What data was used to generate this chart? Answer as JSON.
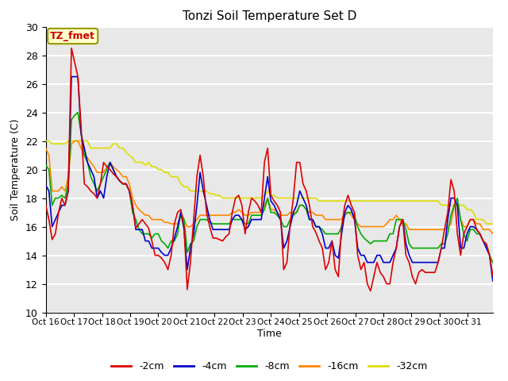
{
  "title": "Tonzi Soil Temperature Set D",
  "xlabel": "Time",
  "ylabel": "Soil Temperature (C)",
  "ylim": [
    10,
    30
  ],
  "yticks": [
    10,
    12,
    14,
    16,
    18,
    20,
    22,
    24,
    26,
    28,
    30
  ],
  "xtick_labels": [
    "Oct 16",
    "Oct 17",
    "Oct 18",
    "Oct 19",
    "Oct 20",
    "Oct 21",
    "Oct 22",
    "Oct 23",
    "Oct 24",
    "Oct 25",
    "Oct 26",
    "Oct 27",
    "Oct 28",
    "Oct 29",
    "Oct 30",
    "Oct 31"
  ],
  "annotation_text": "TZ_fmet",
  "annotation_color": "#cc0000",
  "annotation_bg": "#ffffcc",
  "annotation_border": "#999900",
  "colors": {
    "-2cm": "#dd0000",
    "-4cm": "#0000cc",
    "-8cm": "#00aa00",
    "-16cm": "#ff8800",
    "-32cm": "#dddd00"
  },
  "background_color": "#e8e8e8",
  "grid_color": "#ffffff",
  "series": {
    "-2cm": [
      17.5,
      16.5,
      15.1,
      15.5,
      17.0,
      18.0,
      17.5,
      18.5,
      28.5,
      27.5,
      26.5,
      23.0,
      19.0,
      18.8,
      18.5,
      18.3,
      18.0,
      19.0,
      20.5,
      20.2,
      20.0,
      19.7,
      19.5,
      19.2,
      19.0,
      19.0,
      18.5,
      17.5,
      15.9,
      16.2,
      16.5,
      16.2,
      15.9,
      15.0,
      14.0,
      14.0,
      13.8,
      13.5,
      13.0,
      14.0,
      16.2,
      17.0,
      17.2,
      16.0,
      11.6,
      13.5,
      16.5,
      19.5,
      21.0,
      19.5,
      17.0,
      16.0,
      15.2,
      15.2,
      15.1,
      15.0,
      15.3,
      15.5,
      17.0,
      18.0,
      18.2,
      17.5,
      15.5,
      17.0,
      18.0,
      17.8,
      17.5,
      17.0,
      20.5,
      21.5,
      18.2,
      17.8,
      17.5,
      17.0,
      13.0,
      13.5,
      16.2,
      18.0,
      20.5,
      20.5,
      19.0,
      18.5,
      17.5,
      16.0,
      15.6,
      15.0,
      14.5,
      13.0,
      13.5,
      15.0,
      13.0,
      12.5,
      16.0,
      17.5,
      18.2,
      17.5,
      17.0,
      14.0,
      13.0,
      13.5,
      12.0,
      11.5,
      12.5,
      13.5,
      12.8,
      12.5,
      12.0,
      12.0,
      13.5,
      14.5,
      16.0,
      16.5,
      14.0,
      13.5,
      12.5,
      12.0,
      12.8,
      13.0,
      12.8,
      12.8,
      12.8,
      12.8,
      13.5,
      14.5,
      15.8,
      17.0,
      19.3,
      18.5,
      15.5,
      14.0,
      15.5,
      16.0,
      16.5,
      16.5,
      15.8,
      15.5,
      15.0,
      14.8,
      14.0,
      12.6
    ],
    "-4cm": [
      18.9,
      18.5,
      16.0,
      16.5,
      17.0,
      17.5,
      17.5,
      18.5,
      26.5,
      26.5,
      26.5,
      22.5,
      21.5,
      20.5,
      20.0,
      19.5,
      18.0,
      18.5,
      18.0,
      19.5,
      20.5,
      20.0,
      19.5,
      19.2,
      19.0,
      19.0,
      18.5,
      17.5,
      15.8,
      15.8,
      15.8,
      15.0,
      15.0,
      14.5,
      14.5,
      14.5,
      14.2,
      14.0,
      14.0,
      14.5,
      15.2,
      16.0,
      17.0,
      15.8,
      13.0,
      14.5,
      15.5,
      17.5,
      19.8,
      18.5,
      17.5,
      16.5,
      15.8,
      15.8,
      15.8,
      15.8,
      15.8,
      15.8,
      16.5,
      16.8,
      16.8,
      16.5,
      15.8,
      16.0,
      16.5,
      16.5,
      16.5,
      16.5,
      18.0,
      19.5,
      17.8,
      17.5,
      17.0,
      16.5,
      14.5,
      15.0,
      16.0,
      17.0,
      17.5,
      18.5,
      18.0,
      17.5,
      16.5,
      16.5,
      16.0,
      16.0,
      15.5,
      14.5,
      14.5,
      15.0,
      14.0,
      13.8,
      15.5,
      17.0,
      17.5,
      17.2,
      16.5,
      14.5,
      14.0,
      14.0,
      13.5,
      13.5,
      13.5,
      14.0,
      14.0,
      13.5,
      13.5,
      13.5,
      14.0,
      14.5,
      16.0,
      16.5,
      14.8,
      14.0,
      13.5,
      13.5,
      13.5,
      13.5,
      13.5,
      13.5,
      13.5,
      13.5,
      13.5,
      14.5,
      14.5,
      16.5,
      18.0,
      18.0,
      17.5,
      14.5,
      14.5,
      15.5,
      16.0,
      16.0,
      15.8,
      15.5,
      15.0,
      14.5,
      14.0,
      12.2
    ],
    "-8cm": [
      20.3,
      20.0,
      17.5,
      18.0,
      18.0,
      18.2,
      18.0,
      19.0,
      23.5,
      23.8,
      24.0,
      22.5,
      21.0,
      20.5,
      19.5,
      19.0,
      18.5,
      19.0,
      19.5,
      20.0,
      20.5,
      20.0,
      19.5,
      19.2,
      19.0,
      19.0,
      18.5,
      17.0,
      16.5,
      15.8,
      15.5,
      15.5,
      15.5,
      15.2,
      15.5,
      15.5,
      15.0,
      14.8,
      14.5,
      15.0,
      15.0,
      15.5,
      17.0,
      16.5,
      14.2,
      14.8,
      15.0,
      16.0,
      16.5,
      16.5,
      16.5,
      16.3,
      16.2,
      16.2,
      16.2,
      16.2,
      16.2,
      16.2,
      16.5,
      16.5,
      16.5,
      16.5,
      16.2,
      16.2,
      16.8,
      16.8,
      16.8,
      16.8,
      17.2,
      18.0,
      17.0,
      17.0,
      16.8,
      16.5,
      16.0,
      16.0,
      16.5,
      16.8,
      17.0,
      17.5,
      17.5,
      17.2,
      16.5,
      16.5,
      16.0,
      16.0,
      15.8,
      15.5,
      15.5,
      15.5,
      15.5,
      15.5,
      16.0,
      16.8,
      17.0,
      17.0,
      16.8,
      16.0,
      15.5,
      15.2,
      15.0,
      14.8,
      15.0,
      15.0,
      15.0,
      15.0,
      15.0,
      15.5,
      15.5,
      16.5,
      16.5,
      16.5,
      15.8,
      14.8,
      14.5,
      14.5,
      14.5,
      14.5,
      14.5,
      14.5,
      14.5,
      14.5,
      14.5,
      14.8,
      14.8,
      15.5,
      16.8,
      17.5,
      18.0,
      16.5,
      15.5,
      15.0,
      15.8,
      15.8,
      15.5,
      15.5,
      15.0,
      14.8,
      14.0,
      13.5
    ],
    "-16cm": [
      21.5,
      21.0,
      18.5,
      18.5,
      18.5,
      18.8,
      18.5,
      19.5,
      21.8,
      22.0,
      22.0,
      21.5,
      21.0,
      20.8,
      20.5,
      20.2,
      19.8,
      19.8,
      19.8,
      20.2,
      20.5,
      20.2,
      20.0,
      19.8,
      19.5,
      19.5,
      19.0,
      18.0,
      17.5,
      17.2,
      17.0,
      16.8,
      16.8,
      16.5,
      16.5,
      16.5,
      16.5,
      16.3,
      16.3,
      16.2,
      16.2,
      16.2,
      16.8,
      16.5,
      16.0,
      16.0,
      16.2,
      16.5,
      16.8,
      16.8,
      16.8,
      16.8,
      16.8,
      16.8,
      16.8,
      16.8,
      16.8,
      16.8,
      17.0,
      17.0,
      17.2,
      17.0,
      16.8,
      16.8,
      17.0,
      17.0,
      17.0,
      17.0,
      17.5,
      18.0,
      17.2,
      17.2,
      17.0,
      16.8,
      16.8,
      16.8,
      17.0,
      17.0,
      17.0,
      17.5,
      17.5,
      17.2,
      17.0,
      17.0,
      16.8,
      16.8,
      16.8,
      16.5,
      16.5,
      16.5,
      16.5,
      16.5,
      16.5,
      17.0,
      17.0,
      16.8,
      16.5,
      16.2,
      16.0,
      16.0,
      16.0,
      16.0,
      16.0,
      16.0,
      16.0,
      16.0,
      16.2,
      16.5,
      16.5,
      16.8,
      16.5,
      16.2,
      16.2,
      15.8,
      15.8,
      15.8,
      15.8,
      15.8,
      15.8,
      15.8,
      15.8,
      15.8,
      15.8,
      15.8,
      15.8,
      16.0,
      16.2,
      17.5,
      17.5,
      16.5,
      16.0,
      16.0,
      16.5,
      16.5,
      16.2,
      16.2,
      15.8,
      15.8,
      15.8,
      15.5
    ],
    "-32cm": [
      22.0,
      22.0,
      21.8,
      21.8,
      21.8,
      21.8,
      21.8,
      22.0,
      22.0,
      22.0,
      22.0,
      22.0,
      22.0,
      22.0,
      21.5,
      21.5,
      21.5,
      21.5,
      21.5,
      21.5,
      21.5,
      21.8,
      21.8,
      21.5,
      21.5,
      21.2,
      21.0,
      20.8,
      20.5,
      20.5,
      20.5,
      20.3,
      20.5,
      20.2,
      20.2,
      20.0,
      20.0,
      19.8,
      19.8,
      19.5,
      19.5,
      19.5,
      19.0,
      18.8,
      18.8,
      18.5,
      18.5,
      18.5,
      18.5,
      18.5,
      18.5,
      18.3,
      18.3,
      18.2,
      18.2,
      18.0,
      18.0,
      18.0,
      18.0,
      18.0,
      18.0,
      18.0,
      18.0,
      18.0,
      18.0,
      18.0,
      18.0,
      18.0,
      18.2,
      18.5,
      18.2,
      18.2,
      18.0,
      18.0,
      18.0,
      18.0,
      18.0,
      18.0,
      18.0,
      18.0,
      18.0,
      18.0,
      18.0,
      18.0,
      18.0,
      17.8,
      17.8,
      17.8,
      17.8,
      17.8,
      17.8,
      17.8,
      17.8,
      17.8,
      17.8,
      17.8,
      17.8,
      17.8,
      17.8,
      17.8,
      17.8,
      17.8,
      17.8,
      17.8,
      17.8,
      17.8,
      17.8,
      17.8,
      17.8,
      17.8,
      17.8,
      17.8,
      17.8,
      17.8,
      17.8,
      17.8,
      17.8,
      17.8,
      17.8,
      17.8,
      17.8,
      17.8,
      17.8,
      17.5,
      17.5,
      17.5,
      17.5,
      17.5,
      17.5,
      17.5,
      17.5,
      17.2,
      17.2,
      17.0,
      16.5,
      16.5,
      16.5,
      16.2,
      16.2,
      16.2
    ]
  }
}
